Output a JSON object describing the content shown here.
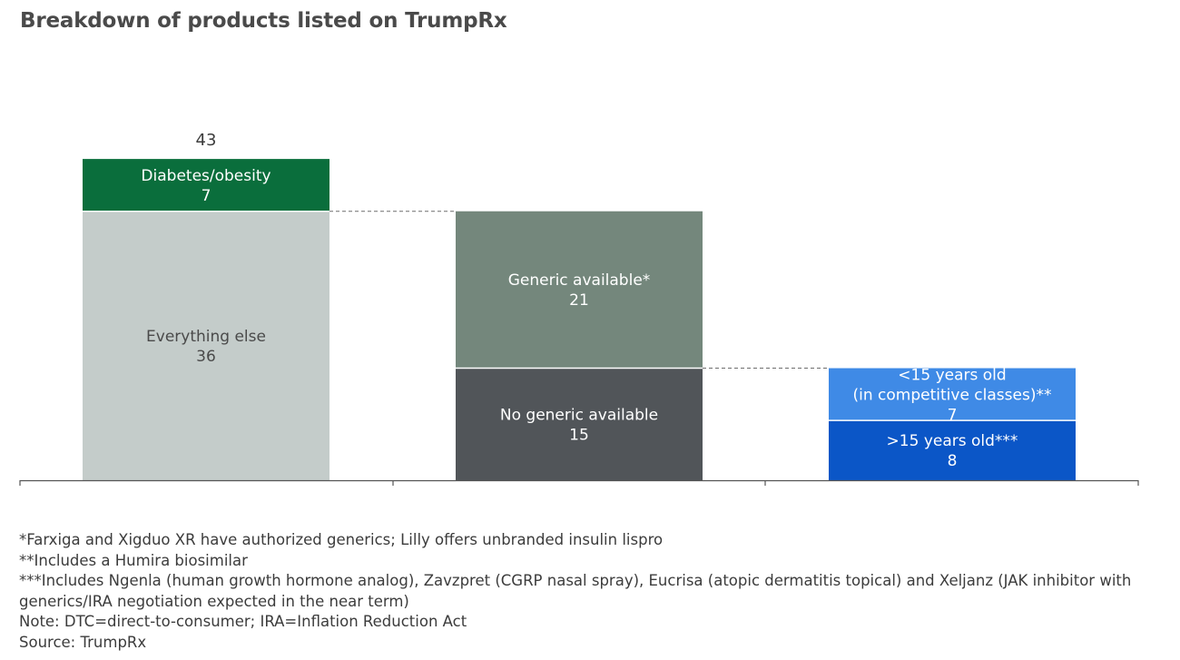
{
  "title": "Breakdown of products listed on TrumpRx",
  "chart_data": {
    "type": "bar",
    "subtype": "waterfall-stacked",
    "title": "Breakdown of products listed on TrumpRx",
    "ylim": [
      0,
      43
    ],
    "grid": false,
    "legend": "none",
    "columns": [
      {
        "total": "43",
        "segments": [
          {
            "label": "Everything else",
            "value": 36,
            "base": 0,
            "color": "#c4ccca",
            "text_color": "#4a4a4a"
          },
          {
            "label": "Diabetes/obesity",
            "value": 7,
            "base": 36,
            "color": "#0a6e3c",
            "text_color": "#ffffff"
          }
        ]
      },
      {
        "total": "",
        "segments": [
          {
            "label": "No generic available",
            "value": 15,
            "base": 0,
            "color": "#515559",
            "text_color": "#ffffff"
          },
          {
            "label": "Generic available*",
            "value": 21,
            "base": 15,
            "color": "#74877c",
            "text_color": "#ffffff"
          }
        ]
      },
      {
        "total": "",
        "segments": [
          {
            "label": ">15 years old***",
            "value": 8,
            "base": 0,
            "color": "#0b56c7",
            "text_color": "#ffffff"
          },
          {
            "label": "<15 years old\n(in competitive classes)**",
            "value": 7,
            "base": 8,
            "color": "#3f8ae6",
            "text_color": "#ffffff"
          }
        ]
      }
    ],
    "connectors": [
      {
        "from_column": 0,
        "to_column": 1,
        "level": 36
      },
      {
        "from_column": 1,
        "to_column": 2,
        "level": 15
      }
    ]
  },
  "footnotes": [
    "*Farxiga and Xigduo XR have authorized generics; Lilly offers unbranded insulin lispro",
    "**Includes a Humira biosimilar",
    "***Includes Ngenla (human growth hormone analog), Zavzpret (CGRP nasal spray), Eucrisa (atopic dermatitis topical) and Xeljanz (JAK inhibitor with generics/IRA negotiation expected in the near term)",
    "Note: DTC=direct-to-consumer; IRA=Inflation Reduction Act",
    "Source: TrumpRx"
  ]
}
